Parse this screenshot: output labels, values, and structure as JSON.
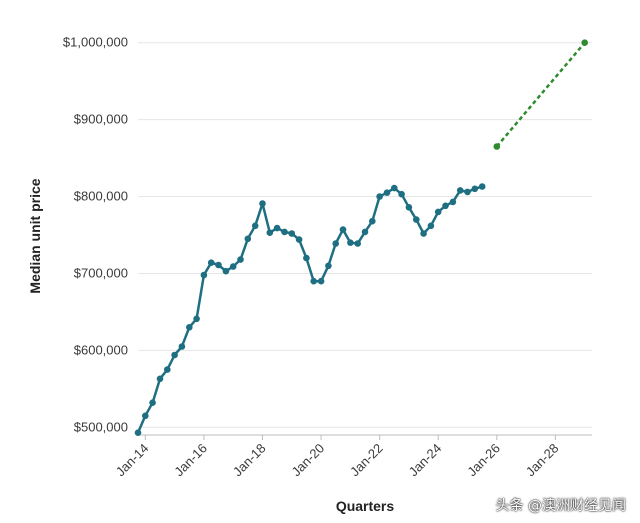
{
  "chart_data": {
    "type": "line",
    "xlabel": "Quarters",
    "ylabel": "Median unit price",
    "ylim": [
      490000,
      1010000
    ],
    "yticks": [
      500000,
      600000,
      700000,
      800000,
      900000,
      1000000
    ],
    "ytick_labels": [
      "$500,000",
      "$600,000",
      "$700,000",
      "$800,000",
      "$900,000",
      "$1,000,000"
    ],
    "xlim": [
      "2013-10",
      "2029-04"
    ],
    "xticks": [
      "2014-01",
      "2016-01",
      "2018-01",
      "2020-01",
      "2022-01",
      "2024-01",
      "2026-01",
      "2028-01"
    ],
    "xtick_labels": [
      "Jan-14",
      "Jan-16",
      "Jan-18",
      "Jan-20",
      "Jan-22",
      "Jan-24",
      "Jan-26",
      "Jan-28"
    ],
    "grid": true,
    "series": [
      {
        "color": "#1f6f82",
        "style": "solid",
        "points": [
          [
            "2013-10",
            493000
          ],
          [
            "2014-01",
            515000
          ],
          [
            "2014-04",
            532000
          ],
          [
            "2014-07",
            563000
          ],
          [
            "2014-10",
            575000
          ],
          [
            "2015-01",
            594000
          ],
          [
            "2015-04",
            605000
          ],
          [
            "2015-07",
            630000
          ],
          [
            "2015-10",
            641000
          ],
          [
            "2016-01",
            698000
          ],
          [
            "2016-04",
            714000
          ],
          [
            "2016-07",
            711000
          ],
          [
            "2016-10",
            703000
          ],
          [
            "2017-01",
            709000
          ],
          [
            "2017-04",
            718000
          ],
          [
            "2017-07",
            745000
          ],
          [
            "2017-10",
            762000
          ],
          [
            "2018-01",
            791000
          ],
          [
            "2018-04",
            753000
          ],
          [
            "2018-07",
            759000
          ],
          [
            "2018-10",
            754000
          ],
          [
            "2019-01",
            752000
          ],
          [
            "2019-04",
            744000
          ],
          [
            "2019-07",
            720000
          ],
          [
            "2019-10",
            690000
          ],
          [
            "2020-01",
            690000
          ],
          [
            "2020-04",
            710000
          ],
          [
            "2020-07",
            739000
          ],
          [
            "2020-10",
            757000
          ],
          [
            "2021-01",
            740000
          ],
          [
            "2021-04",
            739000
          ],
          [
            "2021-07",
            754000
          ],
          [
            "2021-10",
            768000
          ],
          [
            "2022-01",
            800000
          ],
          [
            "2022-04",
            805000
          ],
          [
            "2022-07",
            811000
          ],
          [
            "2022-10",
            803000
          ],
          [
            "2023-01",
            786000
          ],
          [
            "2023-04",
            770000
          ],
          [
            "2023-07",
            752000
          ],
          [
            "2023-10",
            762000
          ],
          [
            "2024-01",
            780000
          ],
          [
            "2024-04",
            788000
          ],
          [
            "2024-07",
            793000
          ],
          [
            "2024-10",
            808000
          ],
          [
            "2025-01",
            806000
          ],
          [
            "2025-04",
            810000
          ],
          [
            "2025-07",
            813000
          ]
        ]
      },
      {
        "color": "#2e8b2e",
        "style": "dashed",
        "points": [
          [
            "2026-01",
            865000
          ],
          [
            "2029-01",
            1000000
          ]
        ]
      }
    ]
  },
  "watermark": "头条 @澳洲财经见闻"
}
